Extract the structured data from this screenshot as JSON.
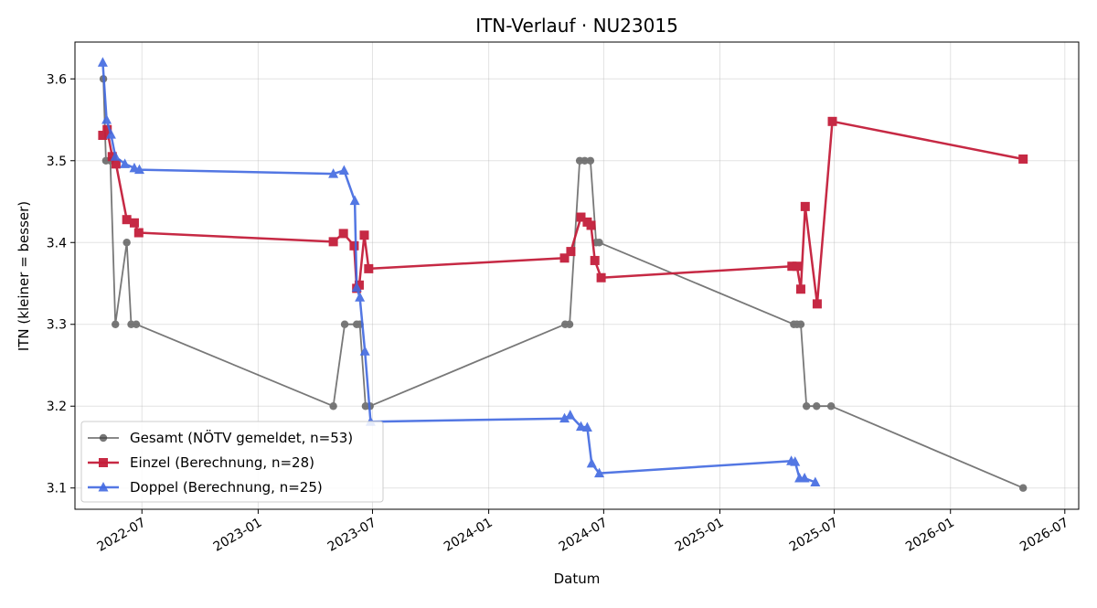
{
  "chart_data": {
    "type": "line",
    "title": "ITN-Verlauf · NU23015",
    "xlabel": "Datum",
    "ylabel": "ITN  (kleiner = besser)",
    "xlim": [
      "2022-03-17",
      "2026-07-23"
    ],
    "ylim": [
      3.074,
      3.645
    ],
    "grid": true,
    "legend_position": "lower-left",
    "x_ticks": [
      {
        "label": "2022-07",
        "date": "2022-07-01"
      },
      {
        "label": "2023-01",
        "date": "2023-01-01"
      },
      {
        "label": "2023-07",
        "date": "2023-07-01"
      },
      {
        "label": "2024-01",
        "date": "2024-01-01"
      },
      {
        "label": "2024-07",
        "date": "2024-07-01"
      },
      {
        "label": "2025-01",
        "date": "2025-01-01"
      },
      {
        "label": "2025-07",
        "date": "2025-07-01"
      },
      {
        "label": "2026-01",
        "date": "2026-01-01"
      },
      {
        "label": "2026-07",
        "date": "2026-07-01"
      }
    ],
    "y_ticks": [
      {
        "label": "3.1",
        "value": 3.1
      },
      {
        "label": "3.2",
        "value": 3.2
      },
      {
        "label": "3.3",
        "value": 3.3
      },
      {
        "label": "3.4",
        "value": 3.4
      },
      {
        "label": "3.5",
        "value": 3.5
      },
      {
        "label": "3.6",
        "value": 3.6
      }
    ],
    "series": [
      {
        "name": "Gesamt (NÖTV gemeldet, n=53)",
        "color": "#3f3f3f",
        "marker": "circle",
        "points": [
          {
            "x": "2022-05-01",
            "y": 3.6
          },
          {
            "x": "2022-05-05",
            "y": 3.5
          },
          {
            "x": "2022-05-12",
            "y": 3.5
          },
          {
            "x": "2022-05-20",
            "y": 3.3
          },
          {
            "x": "2022-06-07",
            "y": 3.4
          },
          {
            "x": "2022-06-14",
            "y": 3.3
          },
          {
            "x": "2022-06-22",
            "y": 3.3
          },
          {
            "x": "2023-04-30",
            "y": 3.2
          },
          {
            "x": "2023-05-18",
            "y": 3.3
          },
          {
            "x": "2023-06-06",
            "y": 3.3
          },
          {
            "x": "2023-06-11",
            "y": 3.3
          },
          {
            "x": "2023-06-20",
            "y": 3.2
          },
          {
            "x": "2023-06-27",
            "y": 3.2
          },
          {
            "x": "2024-05-01",
            "y": 3.3
          },
          {
            "x": "2024-05-08",
            "y": 3.3
          },
          {
            "x": "2024-05-24",
            "y": 3.5
          },
          {
            "x": "2024-06-01",
            "y": 3.5
          },
          {
            "x": "2024-06-10",
            "y": 3.5
          },
          {
            "x": "2024-06-19",
            "y": 3.4
          },
          {
            "x": "2024-06-24",
            "y": 3.4
          },
          {
            "x": "2025-04-28",
            "y": 3.3
          },
          {
            "x": "2025-05-03",
            "y": 3.3
          },
          {
            "x": "2025-05-09",
            "y": 3.3
          },
          {
            "x": "2025-05-18",
            "y": 3.2
          },
          {
            "x": "2025-06-03",
            "y": 3.2
          },
          {
            "x": "2025-06-26",
            "y": 3.2
          },
          {
            "x": "2026-04-26",
            "y": 3.1
          }
        ]
      },
      {
        "name": "Einzel (Berechnung, n=28)",
        "color": "#c41e3a",
        "marker": "square",
        "points": [
          {
            "x": "2022-04-30",
            "y": 3.531
          },
          {
            "x": "2022-05-07",
            "y": 3.538
          },
          {
            "x": "2022-05-15",
            "y": 3.505
          },
          {
            "x": "2022-05-21",
            "y": 3.496
          },
          {
            "x": "2022-06-07",
            "y": 3.428
          },
          {
            "x": "2022-06-19",
            "y": 3.424
          },
          {
            "x": "2022-06-26",
            "y": 3.412
          },
          {
            "x": "2023-04-30",
            "y": 3.401
          },
          {
            "x": "2023-05-16",
            "y": 3.411
          },
          {
            "x": "2023-06-02",
            "y": 3.396
          },
          {
            "x": "2023-06-06",
            "y": 3.344
          },
          {
            "x": "2023-06-10",
            "y": 3.348
          },
          {
            "x": "2023-06-18",
            "y": 3.409
          },
          {
            "x": "2023-06-25",
            "y": 3.368
          },
          {
            "x": "2024-04-30",
            "y": 3.381
          },
          {
            "x": "2024-05-10",
            "y": 3.389
          },
          {
            "x": "2024-05-26",
            "y": 3.431
          },
          {
            "x": "2024-06-05",
            "y": 3.425
          },
          {
            "x": "2024-06-11",
            "y": 3.421
          },
          {
            "x": "2024-06-17",
            "y": 3.378
          },
          {
            "x": "2024-06-27",
            "y": 3.357
          },
          {
            "x": "2025-04-25",
            "y": 3.371
          },
          {
            "x": "2025-05-03",
            "y": 3.371
          },
          {
            "x": "2025-05-09",
            "y": 3.343
          },
          {
            "x": "2025-05-16",
            "y": 3.444
          },
          {
            "x": "2025-06-04",
            "y": 3.325
          },
          {
            "x": "2025-06-28",
            "y": 3.548
          },
          {
            "x": "2026-04-26",
            "y": 3.502
          }
        ]
      },
      {
        "name": "Doppel (Berechnung, n=25)",
        "color": "#4169e1",
        "marker": "triangle",
        "points": [
          {
            "x": "2022-04-30",
            "y": 3.62
          },
          {
            "x": "2022-05-06",
            "y": 3.55
          },
          {
            "x": "2022-05-13",
            "y": 3.532
          },
          {
            "x": "2022-05-20",
            "y": 3.505
          },
          {
            "x": "2022-06-04",
            "y": 3.496
          },
          {
            "x": "2022-06-19",
            "y": 3.491
          },
          {
            "x": "2022-06-27",
            "y": 3.489
          },
          {
            "x": "2023-04-30",
            "y": 3.484
          },
          {
            "x": "2023-05-17",
            "y": 3.488
          },
          {
            "x": "2023-06-03",
            "y": 3.451
          },
          {
            "x": "2023-06-06",
            "y": 3.345
          },
          {
            "x": "2023-06-11",
            "y": 3.333
          },
          {
            "x": "2023-06-19",
            "y": 3.267
          },
          {
            "x": "2023-06-28",
            "y": 3.181
          },
          {
            "x": "2024-04-30",
            "y": 3.185
          },
          {
            "x": "2024-05-09",
            "y": 3.189
          },
          {
            "x": "2024-05-26",
            "y": 3.175
          },
          {
            "x": "2024-06-05",
            "y": 3.174
          },
          {
            "x": "2024-06-12",
            "y": 3.13
          },
          {
            "x": "2024-06-24",
            "y": 3.118
          },
          {
            "x": "2025-04-24",
            "y": 3.133
          },
          {
            "x": "2025-04-30",
            "y": 3.132
          },
          {
            "x": "2025-05-07",
            "y": 3.112
          },
          {
            "x": "2025-05-15",
            "y": 3.112
          },
          {
            "x": "2025-06-01",
            "y": 3.107
          }
        ]
      }
    ]
  }
}
